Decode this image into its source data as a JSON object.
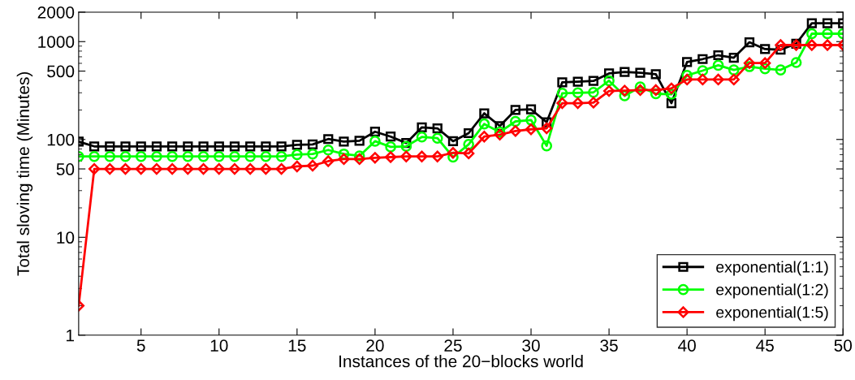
{
  "chart_data": {
    "type": "line",
    "xlabel": "Instances of the 20−blocks world",
    "ylabel": "Total sloving time (Minutes)",
    "x": [
      1,
      2,
      3,
      4,
      5,
      6,
      7,
      8,
      9,
      10,
      11,
      12,
      13,
      14,
      15,
      16,
      17,
      18,
      19,
      20,
      21,
      22,
      23,
      24,
      25,
      26,
      27,
      28,
      29,
      30,
      31,
      32,
      33,
      34,
      35,
      36,
      37,
      38,
      39,
      40,
      41,
      42,
      43,
      44,
      45,
      46,
      47,
      48,
      49,
      50
    ],
    "series": [
      {
        "name": "exponential(1:1)",
        "color": "#000000",
        "marker": "square",
        "values": [
          95,
          85,
          85,
          85,
          85,
          85,
          85,
          85,
          85,
          85,
          85,
          85,
          85,
          85,
          88,
          89,
          101,
          95,
          97,
          120,
          107,
          92,
          133,
          130,
          96,
          116,
          185,
          137,
          200,
          203,
          150,
          383,
          390,
          396,
          473,
          489,
          480,
          464,
          235,
          618,
          663,
          726,
          685,
          984,
          839,
          826,
          953,
          1540,
          1540,
          1540
        ]
      },
      {
        "name": "exponential(1:2)",
        "color": "#00ff00",
        "marker": "circle",
        "values": [
          67,
          67,
          67,
          67,
          67,
          67,
          67,
          67,
          67,
          67,
          67,
          67,
          67,
          67,
          70,
          71,
          78,
          71,
          68,
          96,
          84,
          85,
          106,
          103,
          66,
          89,
          144,
          119,
          153,
          158,
          86,
          297,
          300,
          303,
          398,
          279,
          344,
          293,
          290,
          452,
          505,
          573,
          514,
          555,
          528,
          514,
          611,
          1205,
          1205,
          1205
        ]
      },
      {
        "name": "exponential(1:5)",
        "color": "#ff0000",
        "marker": "diamond",
        "values": [
          2,
          50,
          50,
          50,
          50,
          50,
          50,
          50,
          50,
          50,
          50,
          50,
          50,
          50,
          53,
          54,
          60,
          63,
          63,
          65,
          66,
          67,
          67,
          67,
          73,
          72,
          107,
          112,
          122,
          127,
          130,
          235,
          235,
          238,
          313,
          316,
          320,
          320,
          333,
          410,
          410,
          410,
          410,
          604,
          604,
          922,
          922,
          922,
          922,
          922
        ]
      }
    ],
    "xlim": [
      1,
      50
    ],
    "xticks": [
      5,
      10,
      15,
      20,
      25,
      30,
      35,
      40,
      45,
      50
    ],
    "ylim": [
      1,
      2000
    ],
    "yticks": [
      1,
      10,
      50,
      100,
      500,
      1000,
      2000
    ],
    "log": "y",
    "grid": false,
    "legend": "bottom right",
    "line_style": "solid"
  }
}
